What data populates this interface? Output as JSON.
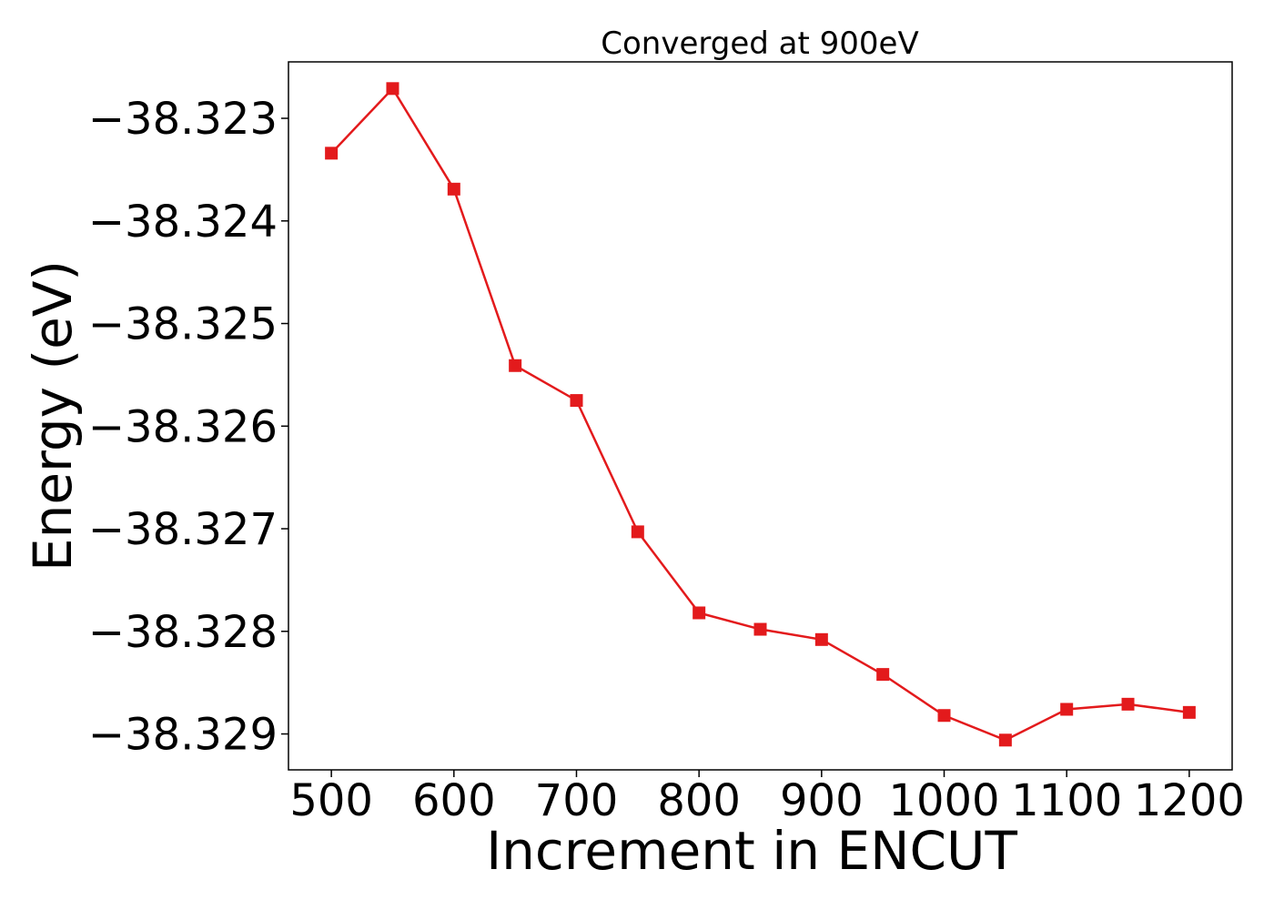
{
  "chart_data": {
    "type": "line",
    "title": "Converged at 900eV",
    "xlabel": "Increment in ENCUT",
    "ylabel": "Energy (eV)",
    "xlim": [
      465,
      1235
    ],
    "ylim": [
      -38.32935,
      -38.32245
    ],
    "x_ticks": [
      500,
      600,
      700,
      800,
      900,
      1000,
      1100,
      1200
    ],
    "x_tick_labels": [
      "500",
      "600",
      "700",
      "800",
      "900",
      "1000",
      "1100",
      "1200"
    ],
    "y_ticks": [
      -38.323,
      -38.324,
      -38.325,
      -38.326,
      -38.327,
      -38.328,
      -38.329
    ],
    "y_tick_labels": [
      "−38.323",
      "−38.324",
      "−38.325",
      "−38.326",
      "−38.327",
      "−38.328",
      "−38.329"
    ],
    "grid": false,
    "series": [
      {
        "color": "#e31a1c",
        "marker": "square",
        "x": [
          500,
          550,
          600,
          650,
          700,
          750,
          800,
          850,
          900,
          950,
          1000,
          1050,
          1100,
          1150,
          1200
        ],
        "values": [
          -38.32334,
          -38.32271,
          -38.32369,
          -38.32541,
          -38.32575,
          -38.32703,
          -38.32782,
          -38.32798,
          -38.32808,
          -38.32842,
          -38.32882,
          -38.32906,
          -38.32876,
          -38.32871,
          -38.32879
        ]
      }
    ]
  }
}
